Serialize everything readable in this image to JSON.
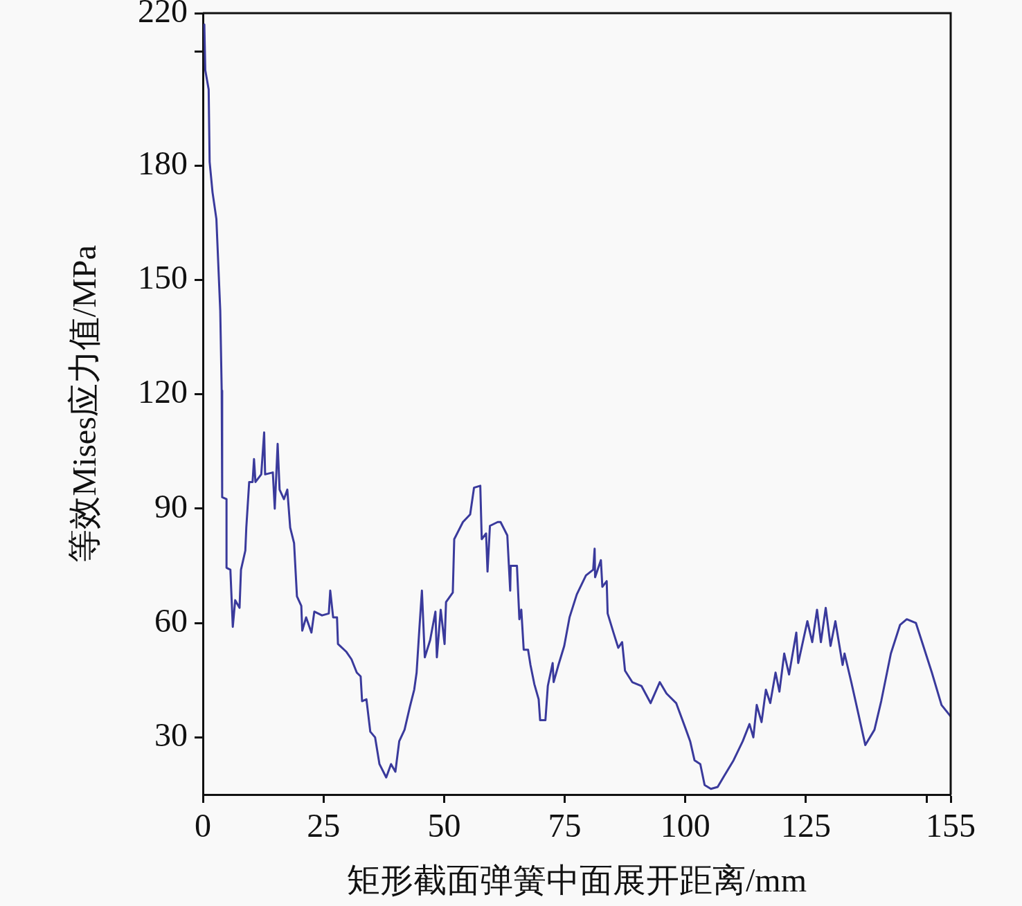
{
  "chart_data": {
    "type": "line",
    "xlabel": "矩形截面弹簧中面展开距离/mm",
    "ylabel": "等效Mises应力值/MPa",
    "color": "#3a3a9c",
    "xlim": [
      0,
      155
    ],
    "xticks": [
      0,
      25,
      50,
      75,
      100,
      125,
      {
        "value": 150,
        "label": null
      },
      155
    ],
    "ylim": [
      15,
      220
    ],
    "yticks": [
      30,
      60,
      90,
      120,
      150,
      180,
      {
        "value": 210,
        "label": null
      },
      220
    ],
    "x": [
      0.3,
      0.5,
      1.2,
      1.4,
      2.0,
      2.8,
      3.0,
      3.6,
      3.9,
      4.0,
      4.9,
      4.9,
      5.7,
      6.2,
      6.7,
      7.6,
      7.9,
      8.8,
      9.0,
      9.6,
      10.3,
      10.6,
      10.9,
      12.1,
      12.7,
      12.9,
      14.5,
      14.9,
      15.5,
      15.9,
      16.8,
      17.5,
      18.1,
      18.9,
      19.5,
      20.4,
      20.6,
      21.4,
      22.5,
      23.1,
      24.7,
      26.1,
      26.4,
      27.0,
      27.8,
      28.0,
      29.7,
      30.8,
      31.9,
      32.7,
      33.0,
      33.9,
      34.7,
      35.7,
      36.6,
      38.0,
      39.0,
      39.9,
      40.7,
      41.8,
      42.9,
      43.8,
      44.3,
      44.9,
      45.4,
      46.0,
      47.1,
      48.2,
      48.5,
      49.3,
      50.1,
      50.4,
      51.8,
      52.1,
      53.9,
      55.4,
      56.2,
      57.5,
      57.8,
      58.7,
      59.0,
      59.5,
      61.1,
      61.7,
      63.1,
      63.7,
      63.8,
      65.1,
      65.6,
      66.0,
      66.5,
      67.4,
      67.9,
      68.7,
      69.6,
      69.9,
      71.0,
      71.5,
      72.5,
      72.7,
      73.7,
      74.9,
      76.0,
      77.5,
      79.4,
      80.9,
      81.2,
      81.3,
      82.5,
      82.8,
      83.7,
      83.9,
      85.1,
      86.1,
      86.9,
      87.5,
      89.0,
      90.9,
      92.8,
      94.7,
      96.1,
      98.1,
      100.0,
      101.0,
      101.9,
      103.1,
      104.0,
      105.3,
      106.7,
      108.1,
      110.0,
      111.9,
      113.3,
      114.1,
      114.8,
      115.8,
      116.7,
      117.6,
      118.7,
      119.5,
      120.5,
      121.5,
      123.0,
      123.4,
      125.3,
      126.3,
      127.3,
      128.1,
      129.1,
      130.1,
      131.1,
      132.6,
      133.0,
      134.4,
      135.9,
      137.3,
      139.2,
      140.6,
      142.6,
      144.5,
      145.9,
      147.8,
      149.2,
      151.1,
      153.1,
      155.0
    ],
    "values": [
      217,
      205,
      200,
      181,
      173,
      166,
      160,
      142,
      121,
      93,
      92.5,
      74.5,
      74,
      59,
      66,
      64,
      74,
      79,
      85,
      97,
      97,
      103,
      97,
      99,
      110,
      99,
      99.5,
      90,
      107,
      95,
      92.5,
      95,
      85,
      81,
      67,
      64.5,
      58,
      61.5,
      57.5,
      63,
      62,
      62.5,
      68.5,
      61.5,
      61.5,
      54.5,
      52.5,
      50.5,
      47,
      46,
      39.5,
      40,
      31.5,
      30,
      23,
      19.5,
      23,
      21,
      29,
      32,
      38,
      42.5,
      47,
      59,
      68.5,
      51,
      55.5,
      63,
      51,
      63.5,
      54.5,
      65.5,
      68,
      82,
      86.5,
      88.5,
      95.5,
      96,
      82,
      83.5,
      73.5,
      85.5,
      86.5,
      86.5,
      83,
      68.5,
      75,
      75,
      61,
      63.5,
      53,
      53,
      49,
      44,
      40,
      34.5,
      34.5,
      43.5,
      49.5,
      44.5,
      49,
      54,
      61.5,
      67.5,
      72.5,
      74,
      79.5,
      72,
      76.5,
      69.5,
      71,
      62.5,
      57.5,
      53.5,
      55,
      47.5,
      44.5,
      43.5,
      39,
      44.5,
      41.5,
      39,
      32.5,
      29,
      24,
      23,
      17.5,
      16.5,
      17,
      20,
      24,
      29,
      33.5,
      30,
      38.5,
      34,
      42.5,
      39,
      47,
      42,
      52,
      46.5,
      57.5,
      49.5,
      60.5,
      55,
      63.5,
      55,
      64,
      54,
      60.5,
      49,
      52,
      44.5,
      36,
      28,
      32,
      39.5,
      52,
      59.5,
      61,
      60,
      54.5,
      47,
      38.5,
      35.5
    ]
  }
}
